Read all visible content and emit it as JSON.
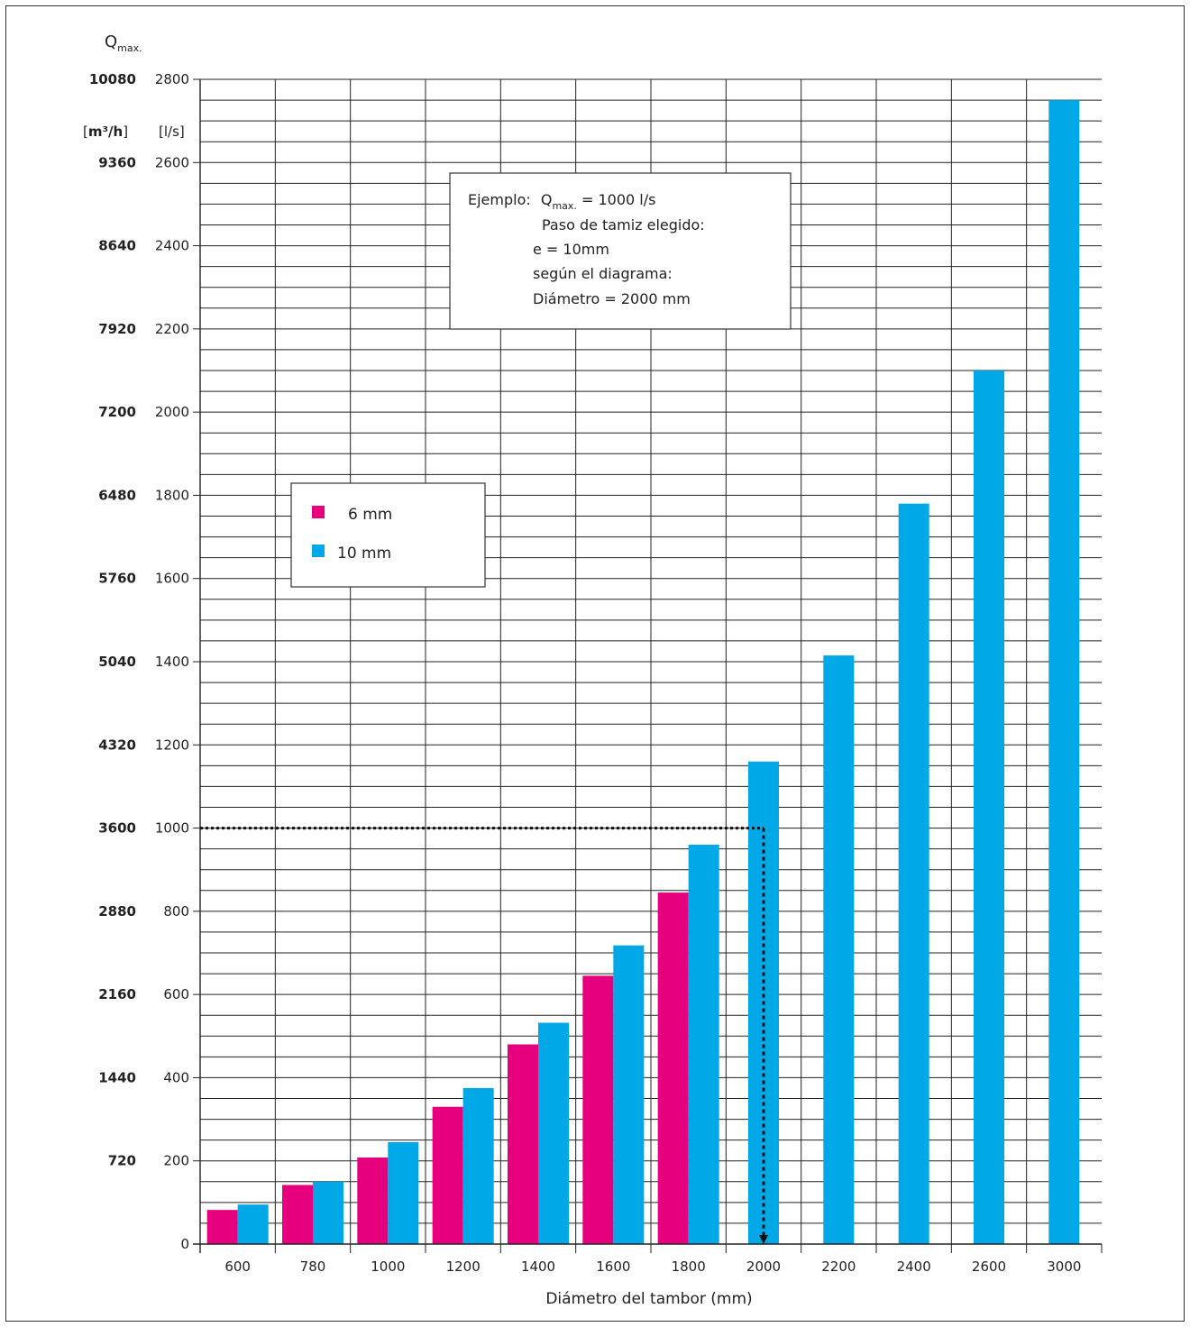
{
  "chart_data": {
    "type": "bar",
    "title": "",
    "ylabel_symbol": "Q",
    "ylabel_subscript": "max.",
    "y_unit_left_prefix": "[",
    "y_unit_left_core": "m³/h",
    "y_unit_left_suffix": "]",
    "y_unit_right": "[l/s]",
    "xlabel": "Diámetro del tambor (mm)",
    "categories": [
      "600",
      "780",
      "1000",
      "1200",
      "1400",
      "1600",
      "1800",
      "2000",
      "2200",
      "2400",
      "2600",
      "3000"
    ],
    "ylim": [
      0,
      2800
    ],
    "y_ticks_ls": [
      "0",
      "200",
      "400",
      "600",
      "800",
      "1000",
      "1200",
      "1400",
      "1600",
      "1800",
      "2000",
      "2200",
      "2400",
      "2600",
      "2800"
    ],
    "y_ticks_m3h": [
      "",
      "720",
      "1440",
      "2160",
      "2880",
      "3600",
      "4320",
      "5040",
      "5760",
      "6480",
      "7200",
      "7920",
      "8640",
      "9360",
      "10080"
    ],
    "grid": true,
    "series": [
      {
        "name": "6 mm",
        "color": "#e6007e",
        "values": [
          82,
          142,
          208,
          330,
          480,
          645,
          845,
          null,
          null,
          null,
          null,
          null
        ]
      },
      {
        "name": "10 mm",
        "color": "#00a8e8",
        "values": [
          95,
          150,
          245,
          375,
          532,
          718,
          960,
          1160,
          1415,
          1780,
          2100,
          2750
        ]
      }
    ],
    "legend_position": "middle-left",
    "example_line_value": 1000,
    "example_category": "2000",
    "annotation": {
      "line1_prefix": "Ejemplo:",
      "line1_symbol": "Q",
      "line1_subscript": "max.",
      "line1_suffix": " = 1000 l/s",
      "line2": "Paso de tamiz elegido:",
      "line3": "e = 10mm",
      "line4": "según el diagrama:",
      "line5": "Diámetro = 2000 mm"
    }
  }
}
